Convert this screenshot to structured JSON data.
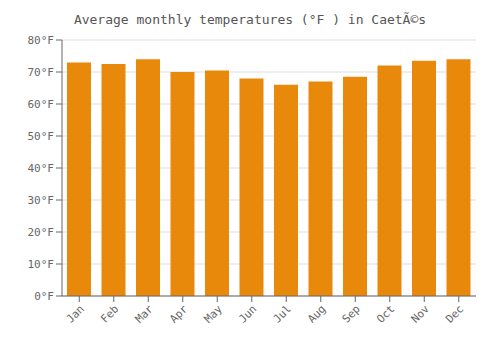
{
  "chart_data": {
    "type": "bar",
    "title": "Average monthly temperatures (°F ) in CaetÃ©s",
    "categories": [
      "Jan",
      "Feb",
      "Mar",
      "Apr",
      "May",
      "Jun",
      "Jul",
      "Aug",
      "Sep",
      "Oct",
      "Nov",
      "Dec"
    ],
    "values": [
      73.0,
      72.5,
      74.0,
      70.0,
      70.5,
      68.0,
      66.0,
      67.0,
      68.5,
      72.0,
      73.5,
      74.0
    ],
    "color": "#E8890C",
    "ylim": [
      0,
      80
    ],
    "yticks": [
      {
        "value": 0,
        "label": "0°F"
      },
      {
        "value": 10,
        "label": "10°F"
      },
      {
        "value": 20,
        "label": "20°F"
      },
      {
        "value": 30,
        "label": "30°F"
      },
      {
        "value": 40,
        "label": "40°F"
      },
      {
        "value": 50,
        "label": "50°F"
      },
      {
        "value": 60,
        "label": "60°F"
      },
      {
        "value": 70,
        "label": "70°F"
      },
      {
        "value": 80,
        "label": "80°F"
      }
    ],
    "grid": true
  }
}
